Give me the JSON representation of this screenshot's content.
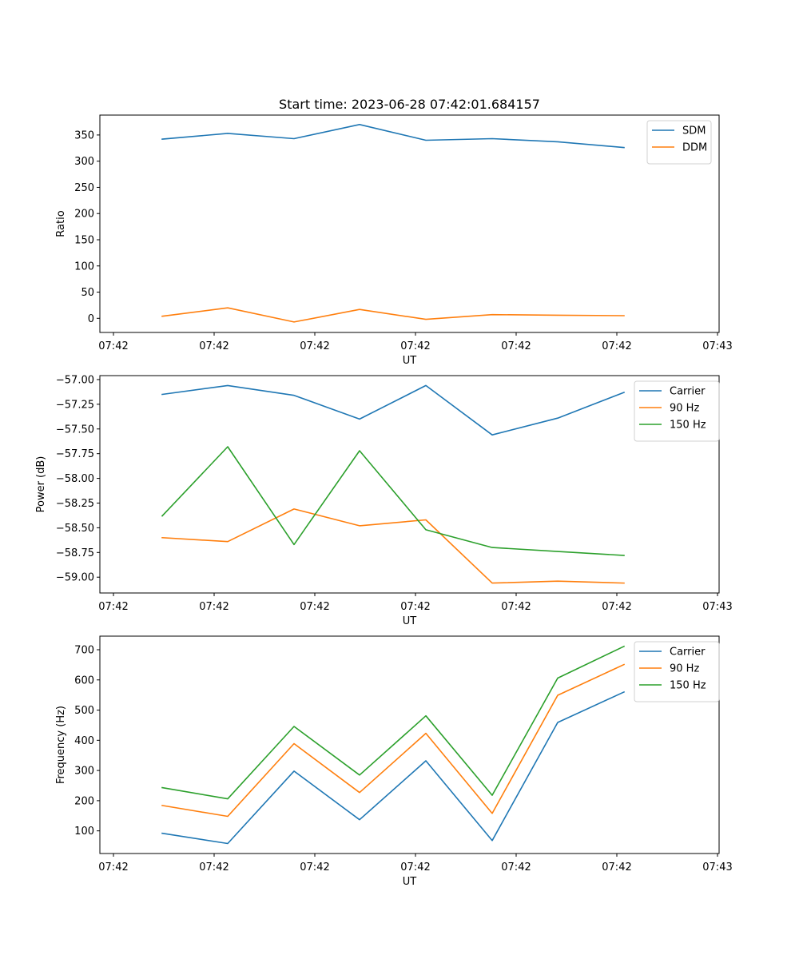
{
  "title": "Start time: 2023-06-28 07:42:01.684157",
  "chart_data": [
    {
      "type": "line",
      "xlabel": "UT",
      "ylabel": "Ratio",
      "x_tick_labels": [
        "07:42",
        "07:42",
        "07:42",
        "07:42",
        "07:42",
        "07:42",
        "07:43"
      ],
      "ylim": [
        -27,
        388
      ],
      "yticks": [
        0,
        50,
        100,
        150,
        200,
        250,
        300,
        350
      ],
      "legend_position": "top-right",
      "series": [
        {
          "name": "SDM",
          "color": "#1f77b4",
          "values": [
            342,
            353,
            343,
            370,
            340,
            343,
            337,
            326
          ]
        },
        {
          "name": "DDM",
          "color": "#ff7f0e",
          "values": [
            4,
            20,
            -7,
            17,
            -2,
            7,
            6,
            5
          ]
        }
      ]
    },
    {
      "type": "line",
      "xlabel": "UT",
      "ylabel": "Power (dB)",
      "x_tick_labels": [
        "07:42",
        "07:42",
        "07:42",
        "07:42",
        "07:42",
        "07:42",
        "07:43"
      ],
      "ylim": [
        -59.16,
        -56.96
      ],
      "yticks": [
        -59.0,
        -58.75,
        -58.5,
        -58.25,
        -58.0,
        -57.75,
        -57.5,
        -57.25,
        -57.0
      ],
      "ytick_labels": [
        "−59.00",
        "−58.75",
        "−58.50",
        "−58.25",
        "−58.00",
        "−57.75",
        "−57.50",
        "−57.25",
        "−57.00"
      ],
      "legend_position": "top-right",
      "series": [
        {
          "name": "Carrier",
          "color": "#1f77b4",
          "values": [
            -57.15,
            -57.06,
            -57.16,
            -57.4,
            -57.06,
            -57.56,
            -57.39,
            -57.13
          ]
        },
        {
          "name": "90 Hz",
          "color": "#ff7f0e",
          "values": [
            -58.6,
            -58.64,
            -58.31,
            -58.48,
            -58.42,
            -59.06,
            -59.04,
            -59.06
          ]
        },
        {
          "name": "150 Hz",
          "color": "#2ca02c",
          "values": [
            -58.38,
            -57.68,
            -58.67,
            -57.72,
            -58.52,
            -58.7,
            -58.74,
            -58.78
          ]
        }
      ]
    },
    {
      "type": "line",
      "xlabel": "UT",
      "ylabel": "Frequency (Hz)",
      "x_tick_labels": [
        "07:42",
        "07:42",
        "07:42",
        "07:42",
        "07:42",
        "07:42",
        "07:43"
      ],
      "ylim": [
        25,
        745
      ],
      "yticks": [
        100,
        200,
        300,
        400,
        500,
        600,
        700
      ],
      "legend_position": "top-right",
      "series": [
        {
          "name": "Carrier",
          "color": "#1f77b4",
          "values": [
            92,
            58,
            298,
            137,
            332,
            68,
            459,
            560
          ]
        },
        {
          "name": "90 Hz",
          "color": "#ff7f0e",
          "values": [
            184,
            148,
            389,
            227,
            423,
            158,
            549,
            651
          ]
        },
        {
          "name": "150 Hz",
          "color": "#2ca02c",
          "values": [
            243,
            206,
            446,
            285,
            481,
            218,
            606,
            711
          ]
        }
      ]
    }
  ]
}
